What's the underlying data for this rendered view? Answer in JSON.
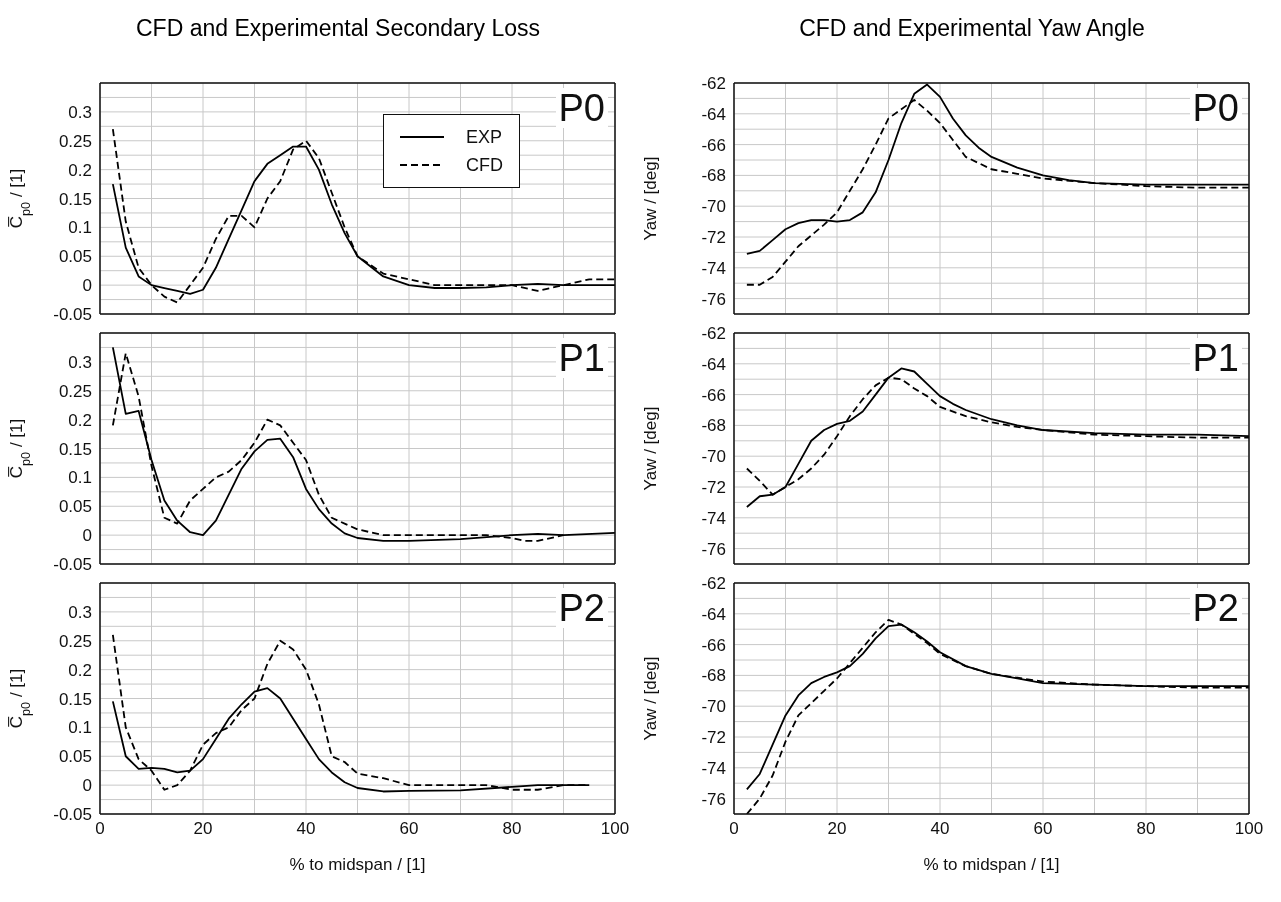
{
  "chart_data": [
    {
      "type": "line",
      "title": "CFD and Experimental Secondary Loss",
      "ylabel": "C̅$_{p0}$ / [1]",
      "annotations": [
        "P0"
      ],
      "legend": "top",
      "grid": true,
      "tick_labels": "y",
      "xlim": [
        0,
        100
      ],
      "xticks": [
        0,
        {
          "value": 10,
          "label": null
        },
        {
          "value": 20,
          "label": null
        },
        {
          "value": 30,
          "label": null
        },
        {
          "value": 40,
          "label": null
        },
        {
          "value": 50,
          "label": null
        },
        {
          "value": 60,
          "label": null
        },
        {
          "value": 70,
          "label": null
        },
        {
          "value": 80,
          "label": null
        },
        {
          "value": 90,
          "label": null
        },
        {
          "value": 100,
          "label": null
        }
      ],
      "ylim": [
        -0.05,
        0.35
      ],
      "yticks": [
        -0.05,
        {
          "value": -0.025,
          "label": null
        },
        0,
        {
          "value": 0.025,
          "label": null
        },
        0.05,
        {
          "value": 0.075,
          "label": null
        },
        0.1,
        {
          "value": 0.125,
          "label": null
        },
        0.15,
        {
          "value": 0.175,
          "label": null
        },
        0.2,
        {
          "value": 0.225,
          "label": null
        },
        0.25,
        {
          "value": 0.275,
          "label": null
        },
        0.3,
        {
          "value": 0.325,
          "label": null
        }
      ],
      "series": [
        {
          "name": "EXP",
          "color": "#000000",
          "line_style": "solid",
          "x": [
            2.5,
            5,
            7.5,
            10,
            12.5,
            15,
            17.5,
            20,
            22.5,
            25,
            27.5,
            30,
            32.5,
            35,
            37.5,
            40,
            42.5,
            45,
            47.5,
            50,
            55,
            60,
            65,
            70,
            75,
            80,
            85,
            90,
            95,
            100
          ],
          "values": [
            0.175,
            0.065,
            0.015,
            0,
            -0.005,
            -0.01,
            -0.015,
            -0.008,
            0.03,
            0.08,
            0.13,
            0.18,
            0.21,
            0.225,
            0.24,
            0.24,
            0.2,
            0.14,
            0.09,
            0.05,
            0.015,
            0,
            -0.005,
            -0.005,
            -0.004,
            0,
            0.002,
            0,
            0,
            0
          ]
        },
        {
          "name": "CFD",
          "color": "#000000",
          "line_style": "dashed",
          "x": [
            2.5,
            5,
            7.5,
            10,
            12.5,
            15,
            17.5,
            20,
            22.5,
            25,
            27.5,
            30,
            32.5,
            35,
            37.5,
            40,
            42.5,
            45,
            47.5,
            50,
            55,
            60,
            65,
            70,
            75,
            80,
            85,
            90,
            95,
            100
          ],
          "values": [
            0.27,
            0.11,
            0.03,
            0,
            -0.02,
            -0.03,
            0,
            0.03,
            0.08,
            0.12,
            0.12,
            0.1,
            0.15,
            0.18,
            0.235,
            0.25,
            0.22,
            0.16,
            0.1,
            0.05,
            0.02,
            0.01,
            0,
            0,
            0,
            0,
            -0.01,
            0,
            0.01,
            0.01
          ]
        }
      ]
    },
    {
      "type": "line",
      "title": "CFD and Experimental Yaw Angle",
      "ylabel": "Yaw / [deg]",
      "annotations": [
        "P0"
      ],
      "grid": true,
      "tick_labels": "y",
      "xlim": [
        0,
        100
      ],
      "xticks": [
        0,
        {
          "value": 10,
          "label": null
        },
        {
          "value": 20,
          "label": null
        },
        {
          "value": 30,
          "label": null
        },
        {
          "value": 40,
          "label": null
        },
        {
          "value": 50,
          "label": null
        },
        {
          "value": 60,
          "label": null
        },
        {
          "value": 70,
          "label": null
        },
        {
          "value": 80,
          "label": null
        },
        {
          "value": 90,
          "label": null
        },
        {
          "value": 100,
          "label": null
        }
      ],
      "ylim": [
        -77,
        -62
      ],
      "yticks": [
        -76,
        {
          "value": -75,
          "label": null
        },
        -74,
        {
          "value": -73,
          "label": null
        },
        -72,
        {
          "value": -71,
          "label": null
        },
        -70,
        {
          "value": -69,
          "label": null
        },
        -68,
        {
          "value": -67,
          "label": null
        },
        -66,
        {
          "value": -65,
          "label": null
        },
        -64,
        {
          "value": -63,
          "label": null
        },
        -62
      ],
      "series": [
        {
          "color": "#000000",
          "line_style": "solid",
          "x": [
            2.5,
            5,
            7.5,
            10,
            12.5,
            15,
            17.5,
            20,
            22.5,
            25,
            27.5,
            30,
            32.5,
            35,
            37.5,
            40,
            42.5,
            45,
            47.5,
            50,
            55,
            60,
            65,
            70,
            80,
            90,
            100
          ],
          "values": [
            -73.1,
            -72.9,
            -72.2,
            -71.5,
            -71.1,
            -70.9,
            -70.9,
            -71,
            -70.9,
            -70.4,
            -69.1,
            -67,
            -64.6,
            -62.7,
            -62.1,
            -62.9,
            -64.3,
            -65.4,
            -66.2,
            -66.8,
            -67.5,
            -68,
            -68.3,
            -68.5,
            -68.6,
            -68.6,
            -68.6
          ]
        },
        {
          "color": "#000000",
          "line_style": "dashed",
          "x": [
            2.5,
            5,
            7.5,
            10,
            12.5,
            15,
            17.5,
            20,
            22.5,
            25,
            27.5,
            30,
            32.5,
            35,
            37.5,
            40,
            42.5,
            45,
            47.5,
            50,
            55,
            60,
            70,
            80,
            90,
            100
          ],
          "values": [
            -75.1,
            -75.1,
            -74.6,
            -73.6,
            -72.6,
            -71.9,
            -71.2,
            -70.4,
            -69,
            -67.6,
            -66,
            -64.3,
            -63.7,
            -63.1,
            -63.8,
            -64.6,
            -65.7,
            -66.8,
            -67.2,
            -67.6,
            -67.9,
            -68.2,
            -68.5,
            -68.7,
            -68.8,
            -68.8
          ]
        }
      ]
    },
    {
      "type": "line",
      "ylabel": "C̅$_{p0}$ / [1]",
      "annotations": [
        "P1"
      ],
      "grid": true,
      "tick_labels": "y",
      "xlim": [
        0,
        100
      ],
      "xticks": [
        0,
        {
          "value": 10,
          "label": null
        },
        {
          "value": 20,
          "label": null
        },
        {
          "value": 30,
          "label": null
        },
        {
          "value": 40,
          "label": null
        },
        {
          "value": 50,
          "label": null
        },
        {
          "value": 60,
          "label": null
        },
        {
          "value": 70,
          "label": null
        },
        {
          "value": 80,
          "label": null
        },
        {
          "value": 90,
          "label": null
        },
        {
          "value": 100,
          "label": null
        }
      ],
      "ylim": [
        -0.05,
        0.35
      ],
      "yticks": [
        -0.05,
        {
          "value": -0.025,
          "label": null
        },
        0,
        {
          "value": 0.025,
          "label": null
        },
        0.05,
        {
          "value": 0.075,
          "label": null
        },
        0.1,
        {
          "value": 0.125,
          "label": null
        },
        0.15,
        {
          "value": 0.175,
          "label": null
        },
        0.2,
        {
          "value": 0.225,
          "label": null
        },
        0.25,
        {
          "value": 0.275,
          "label": null
        },
        0.3,
        {
          "value": 0.325,
          "label": null
        }
      ],
      "series": [
        {
          "color": "#000000",
          "line_style": "solid",
          "x": [
            2.5,
            5,
            7.5,
            10,
            12.5,
            15,
            17.5,
            20,
            22.5,
            25,
            27.5,
            30,
            32.5,
            35,
            37.5,
            40,
            42.5,
            45,
            47.5,
            50,
            55,
            60,
            70,
            80,
            85,
            90,
            100
          ],
          "values": [
            0.325,
            0.21,
            0.215,
            0.13,
            0.06,
            0.025,
            0.005,
            0,
            0.025,
            0.07,
            0.115,
            0.145,
            0.165,
            0.167,
            0.135,
            0.08,
            0.045,
            0.02,
            0.003,
            -0.005,
            -0.01,
            -0.01,
            -0.007,
            0,
            0.002,
            0,
            0.004
          ]
        },
        {
          "color": "#000000",
          "line_style": "dashed",
          "x": [
            2.5,
            5,
            7.5,
            10,
            12.5,
            15,
            17.5,
            20,
            22.5,
            25,
            27.5,
            30,
            32.5,
            35,
            37.5,
            40,
            42.5,
            45,
            47.5,
            50,
            55,
            60,
            70,
            75,
            80,
            82.5,
            85,
            87.5,
            90
          ],
          "values": [
            0.19,
            0.315,
            0.24,
            0.12,
            0.03,
            0.02,
            0.06,
            0.08,
            0.1,
            0.11,
            0.13,
            0.16,
            0.2,
            0.19,
            0.16,
            0.13,
            0.07,
            0.03,
            0.02,
            0.01,
            0,
            0,
            0,
            0,
            -0.005,
            -0.01,
            -0.01,
            -0.005,
            0
          ]
        }
      ]
    },
    {
      "type": "line",
      "ylabel": "Yaw / [deg]",
      "annotations": [
        "P1"
      ],
      "grid": true,
      "tick_labels": "y",
      "xlim": [
        0,
        100
      ],
      "xticks": [
        0,
        {
          "value": 10,
          "label": null
        },
        {
          "value": 20,
          "label": null
        },
        {
          "value": 30,
          "label": null
        },
        {
          "value": 40,
          "label": null
        },
        {
          "value": 50,
          "label": null
        },
        {
          "value": 60,
          "label": null
        },
        {
          "value": 70,
          "label": null
        },
        {
          "value": 80,
          "label": null
        },
        {
          "value": 90,
          "label": null
        },
        {
          "value": 100,
          "label": null
        }
      ],
      "ylim": [
        -77,
        -62
      ],
      "yticks": [
        -76,
        {
          "value": -75,
          "label": null
        },
        -74,
        {
          "value": -73,
          "label": null
        },
        -72,
        {
          "value": -71,
          "label": null
        },
        -70,
        {
          "value": -69,
          "label": null
        },
        -68,
        {
          "value": -67,
          "label": null
        },
        -66,
        {
          "value": -65,
          "label": null
        },
        -64,
        {
          "value": -63,
          "label": null
        },
        -62
      ],
      "series": [
        {
          "color": "#000000",
          "line_style": "solid",
          "x": [
            2.5,
            5,
            7.5,
            10,
            12.5,
            15,
            17.5,
            20,
            22.5,
            25,
            27.5,
            30,
            32.5,
            35,
            37.5,
            40,
            42.5,
            45,
            50,
            55,
            60,
            70,
            80,
            90,
            100
          ],
          "values": [
            -73.3,
            -72.6,
            -72.5,
            -72,
            -70.5,
            -69,
            -68.3,
            -67.9,
            -67.7,
            -67.1,
            -66,
            -64.9,
            -64.3,
            -64.5,
            -65.3,
            -66.1,
            -66.6,
            -67,
            -67.6,
            -68,
            -68.3,
            -68.5,
            -68.6,
            -68.6,
            -68.7
          ]
        },
        {
          "color": "#000000",
          "line_style": "dashed",
          "x": [
            2.5,
            5,
            7.5,
            10,
            12.5,
            15,
            17.5,
            20,
            22.5,
            25,
            27.5,
            30,
            32.5,
            35,
            37.5,
            40,
            45,
            50,
            55,
            60,
            70,
            80,
            90,
            100
          ],
          "values": [
            -70.8,
            -71.6,
            -72.5,
            -72,
            -71.5,
            -70.8,
            -69.9,
            -68.7,
            -67.4,
            -66.3,
            -65.4,
            -64.9,
            -65,
            -65.6,
            -66.1,
            -66.8,
            -67.4,
            -67.8,
            -68.1,
            -68.3,
            -68.6,
            -68.7,
            -68.8,
            -68.8
          ]
        }
      ]
    },
    {
      "type": "line",
      "ylabel": "C̅$_{p0}$ / [1]",
      "xlabel": "% to midspan / [1]",
      "annotations": [
        "P2"
      ],
      "grid": true,
      "xlim": [
        0,
        100
      ],
      "xticks": [
        0,
        {
          "value": 10,
          "label": null
        },
        20,
        {
          "value": 30,
          "label": null
        },
        40,
        {
          "value": 50,
          "label": null
        },
        60,
        {
          "value": 70,
          "label": null
        },
        80,
        {
          "value": 90,
          "label": null
        },
        100
      ],
      "ylim": [
        -0.05,
        0.35
      ],
      "yticks": [
        -0.05,
        {
          "value": -0.025,
          "label": null
        },
        0,
        {
          "value": 0.025,
          "label": null
        },
        0.05,
        {
          "value": 0.075,
          "label": null
        },
        0.1,
        {
          "value": 0.125,
          "label": null
        },
        0.15,
        {
          "value": 0.175,
          "label": null
        },
        0.2,
        {
          "value": 0.225,
          "label": null
        },
        0.25,
        {
          "value": 0.275,
          "label": null
        },
        0.3,
        {
          "value": 0.325,
          "label": null
        }
      ],
      "series": [
        {
          "color": "#000000",
          "line_style": "solid",
          "x": [
            2.5,
            5,
            7.5,
            10,
            12.5,
            15,
            17.5,
            20,
            22.5,
            25,
            27.5,
            30,
            32.5,
            35,
            37.5,
            40,
            42.5,
            45,
            47.5,
            50,
            55,
            60,
            70,
            80,
            85,
            90,
            95
          ],
          "values": [
            0.145,
            0.05,
            0.028,
            0.03,
            0.028,
            0.022,
            0.025,
            0.045,
            0.08,
            0.115,
            0.14,
            0.162,
            0.168,
            0.15,
            0.115,
            0.08,
            0.045,
            0.022,
            0.005,
            -0.005,
            -0.011,
            -0.01,
            -0.009,
            -0.003,
            0,
            0,
            0
          ]
        },
        {
          "color": "#000000",
          "line_style": "dashed",
          "x": [
            2.5,
            5,
            7.5,
            10,
            12.5,
            15,
            17.5,
            20,
            22.5,
            25,
            27.5,
            30,
            32.5,
            35,
            37.5,
            40,
            42.5,
            45,
            47.5,
            50,
            55,
            60,
            70,
            75,
            80,
            85,
            90,
            95
          ],
          "values": [
            0.26,
            0.1,
            0.045,
            0.025,
            -0.008,
            0,
            0.025,
            0.07,
            0.09,
            0.1,
            0.13,
            0.15,
            0.21,
            0.25,
            0.235,
            0.2,
            0.14,
            0.05,
            0.04,
            0.02,
            0.012,
            0,
            0,
            0,
            -0.008,
            -0.008,
            0,
            0
          ]
        }
      ]
    },
    {
      "type": "line",
      "ylabel": "Yaw / [deg]",
      "xlabel": "% to midspan / [1]",
      "annotations": [
        "P2"
      ],
      "grid": true,
      "xlim": [
        0,
        100
      ],
      "xticks": [
        0,
        {
          "value": 10,
          "label": null
        },
        20,
        {
          "value": 30,
          "label": null
        },
        40,
        {
          "value": 50,
          "label": null
        },
        60,
        {
          "value": 70,
          "label": null
        },
        80,
        {
          "value": 90,
          "label": null
        },
        100
      ],
      "ylim": [
        -77,
        -62
      ],
      "yticks": [
        -76,
        {
          "value": -75,
          "label": null
        },
        -74,
        {
          "value": -73,
          "label": null
        },
        -72,
        {
          "value": -71,
          "label": null
        },
        -70,
        {
          "value": -69,
          "label": null
        },
        -68,
        {
          "value": -67,
          "label": null
        },
        -66,
        {
          "value": -65,
          "label": null
        },
        -64,
        {
          "value": -63,
          "label": null
        },
        -62
      ],
      "series": [
        {
          "color": "#000000",
          "line_style": "solid",
          "x": [
            2.5,
            5,
            7.5,
            10,
            12.5,
            15,
            17.5,
            20,
            22.5,
            25,
            27.5,
            30,
            32.5,
            35,
            37.5,
            40,
            45,
            50,
            55,
            60,
            70,
            80,
            90,
            100
          ],
          "values": [
            -75.4,
            -74.4,
            -72.5,
            -70.6,
            -69.3,
            -68.5,
            -68.1,
            -67.8,
            -67.4,
            -66.6,
            -65.6,
            -64.8,
            -64.7,
            -65.2,
            -65.8,
            -66.5,
            -67.4,
            -67.9,
            -68.2,
            -68.5,
            -68.6,
            -68.7,
            -68.7,
            -68.7
          ]
        },
        {
          "color": "#000000",
          "line_style": "dashed",
          "x": [
            2.5,
            5,
            7.5,
            10,
            12.5,
            15,
            17.5,
            20,
            22.5,
            25,
            27.5,
            30,
            32.5,
            35,
            37.5,
            40,
            45,
            50,
            60,
            70,
            80,
            90,
            100
          ],
          "values": [
            -77,
            -76,
            -74.5,
            -72.3,
            -70.6,
            -69.8,
            -69,
            -68.2,
            -67.2,
            -66.2,
            -65.2,
            -64.4,
            -64.7,
            -65.3,
            -65.9,
            -66.6,
            -67.4,
            -67.9,
            -68.4,
            -68.6,
            -68.7,
            -68.8,
            -68.8
          ]
        }
      ]
    }
  ]
}
